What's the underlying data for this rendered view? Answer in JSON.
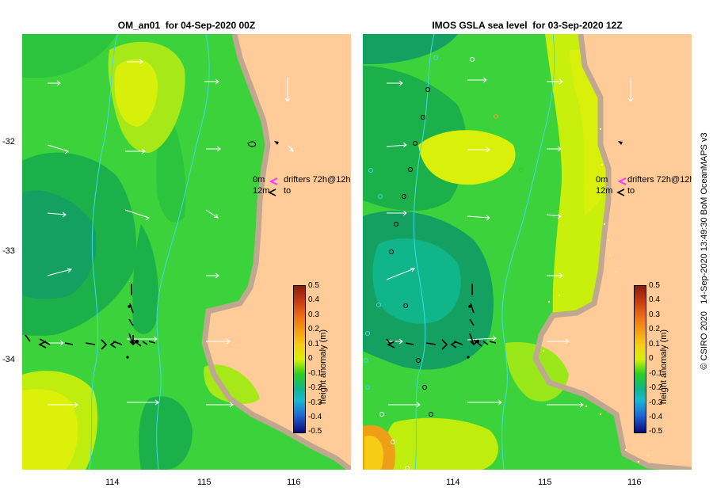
{
  "titles": {
    "left": "OM_an01  for 04-Sep-2020 00Z",
    "right": "IMOS GSLA sea level  for 03-Sep-2020 12Z"
  },
  "legend": {
    "depth_shallow": "0m",
    "depth_deep": "12m",
    "drifters_label": "drifters 72h@12h",
    "to_label": "to"
  },
  "colorbar": {
    "label": "height anomaly (m)",
    "ticks": [
      "0.5",
      "0.4",
      "0.3",
      "0.2",
      "0.1",
      "0",
      "-0.1",
      "-0.2",
      "-0.3",
      "-0.4",
      "-0.5"
    ],
    "colors": [
      "#8a1a0a",
      "#c43a12",
      "#ea6a16",
      "#f59a14",
      "#f6cc14",
      "#d8f00a",
      "#2ccf1e",
      "#10b68a",
      "#1ab8d0",
      "#1f6ad6",
      "#0a0a78"
    ]
  },
  "axes": {
    "lon_ticks": [
      "114",
      "115",
      "116"
    ],
    "lat_ticks": [
      "-32",
      "-33",
      "-34"
    ]
  },
  "credit": "© CSIRO 2020   14-Sep-2020 13:49:30 BoM OceanMAPS v3",
  "colors": {
    "land": "#ffcc99",
    "coast": "#c0a890",
    "isobath": "#40d8e8",
    "drifter_head": "#ff33ff",
    "vector": "#ffffff"
  }
}
